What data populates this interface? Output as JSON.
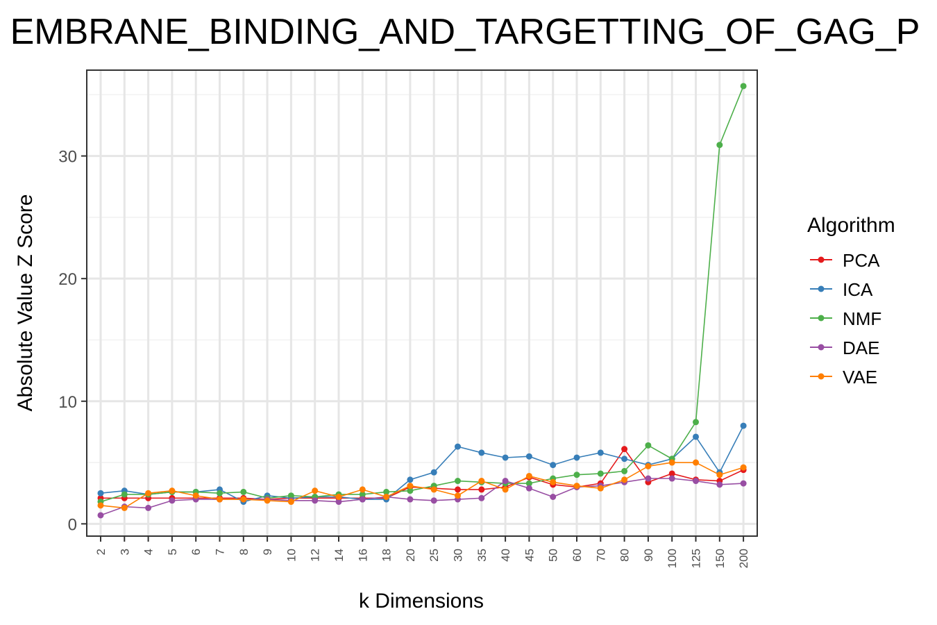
{
  "chart_data": {
    "type": "line",
    "title": "EMBRANE_BINDING_AND_TARGETTING_OF_GAG_P",
    "xlabel": "k Dimensions",
    "ylabel": "Absolute Value Z Score",
    "categories": [
      "2",
      "3",
      "4",
      "5",
      "6",
      "7",
      "8",
      "9",
      "10",
      "12",
      "14",
      "16",
      "18",
      "20",
      "25",
      "30",
      "35",
      "40",
      "45",
      "50",
      "60",
      "70",
      "80",
      "90",
      "100",
      "125",
      "150",
      "200"
    ],
    "ylim": [
      -1,
      37
    ],
    "yticks": [
      0,
      10,
      20,
      30
    ],
    "grid": true,
    "legend": {
      "title": "Algorithm",
      "placement": "right"
    },
    "series": [
      {
        "name": "PCA",
        "color": "#e41a1c",
        "values": [
          2.1,
          2.1,
          2.1,
          2.1,
          2.1,
          2.1,
          2.1,
          2.0,
          2.1,
          2.1,
          2.1,
          2.1,
          2.1,
          3.0,
          2.9,
          2.8,
          2.8,
          3.0,
          3.8,
          3.2,
          3.0,
          3.3,
          6.1,
          3.4,
          4.1,
          3.6,
          3.5,
          4.4
        ]
      },
      {
        "name": "ICA",
        "color": "#377eb8",
        "values": [
          2.5,
          2.7,
          2.4,
          2.6,
          2.6,
          2.8,
          1.8,
          2.3,
          2.1,
          2.2,
          2.2,
          2.0,
          2.0,
          3.6,
          4.2,
          6.3,
          5.8,
          5.4,
          5.5,
          4.8,
          5.4,
          5.8,
          5.3,
          4.8,
          5.3,
          7.1,
          4.2,
          8.0
        ]
      },
      {
        "name": "NMF",
        "color": "#4daf4a",
        "values": [
          1.8,
          2.4,
          2.4,
          2.6,
          2.6,
          2.5,
          2.6,
          2.1,
          2.3,
          2.2,
          2.4,
          2.4,
          2.6,
          2.7,
          3.1,
          3.5,
          3.4,
          3.3,
          3.3,
          3.7,
          4.0,
          4.1,
          4.3,
          6.4,
          5.3,
          8.3,
          30.9,
          35.7
        ]
      },
      {
        "name": "DAE",
        "color": "#984ea3",
        "values": [
          0.7,
          1.4,
          1.3,
          1.9,
          2.0,
          2.0,
          2.0,
          2.0,
          1.9,
          1.9,
          1.8,
          2.0,
          2.2,
          2.0,
          1.9,
          2.0,
          2.1,
          3.5,
          2.9,
          2.2,
          3.0,
          3.1,
          3.4,
          3.7,
          3.7,
          3.5,
          3.2,
          3.3
        ]
      },
      {
        "name": "VAE",
        "color": "#ff7f00",
        "values": [
          1.5,
          1.3,
          2.5,
          2.7,
          2.3,
          2.0,
          2.0,
          1.9,
          1.8,
          2.7,
          2.2,
          2.8,
          2.2,
          3.1,
          2.8,
          2.3,
          3.5,
          2.8,
          3.9,
          3.4,
          3.1,
          2.9,
          3.6,
          4.7,
          5.0,
          5.0,
          4.0,
          4.6
        ]
      }
    ]
  }
}
